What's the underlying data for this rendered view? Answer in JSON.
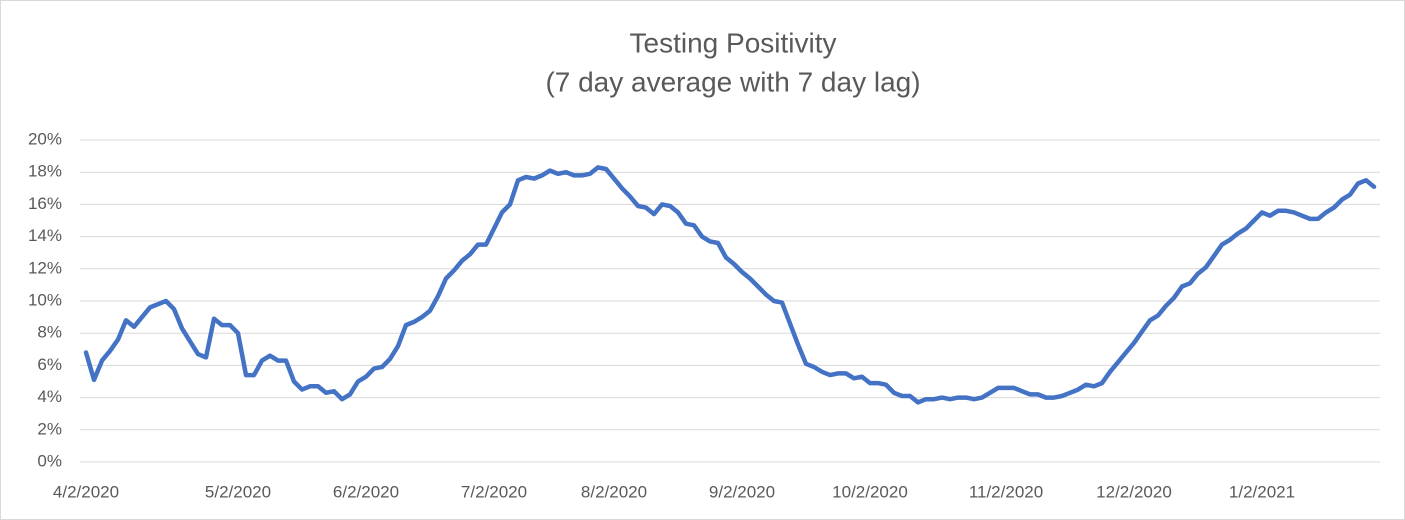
{
  "chart_data": {
    "type": "line",
    "title": "Testing Positivity",
    "subtitle": "(7 day average with 7 day lag)",
    "categories": [
      "4/2/2020",
      null,
      null,
      null,
      null,
      null,
      null,
      null,
      null,
      null,
      null,
      null,
      null,
      null,
      null,
      null,
      null,
      null,
      null,
      "5/2/2020",
      null,
      null,
      null,
      null,
      null,
      null,
      null,
      null,
      null,
      null,
      null,
      null,
      null,
      null,
      null,
      "6/2/2020",
      null,
      null,
      null,
      null,
      null,
      null,
      null,
      null,
      null,
      null,
      null,
      null,
      null,
      null,
      null,
      "7/2/2020",
      null,
      null,
      null,
      null,
      null,
      null,
      null,
      null,
      null,
      null,
      null,
      null,
      null,
      null,
      "8/2/2020",
      null,
      null,
      null,
      null,
      null,
      null,
      null,
      null,
      null,
      null,
      null,
      null,
      null,
      null,
      null,
      "9/2/2020",
      null,
      null,
      null,
      null,
      null,
      null,
      null,
      null,
      null,
      null,
      null,
      null,
      null,
      null,
      null,
      "10/2/2020",
      null,
      null,
      null,
      null,
      null,
      null,
      null,
      null,
      null,
      null,
      null,
      null,
      null,
      null,
      null,
      null,
      "11/2/2020",
      null,
      null,
      null,
      null,
      null,
      null,
      null,
      null,
      null,
      null,
      null,
      null,
      null,
      null,
      null,
      "12/2/2020",
      null,
      null,
      null,
      null,
      null,
      null,
      null,
      null,
      null,
      null,
      null,
      null,
      null,
      null,
      null,
      "1/2/2021",
      null,
      null,
      null,
      null,
      null,
      null,
      null,
      null,
      null,
      null,
      null,
      null,
      null,
      null
    ],
    "values": [
      6.8,
      5.1,
      6.3,
      6.9,
      7.6,
      8.8,
      8.4,
      9.0,
      9.6,
      9.8,
      10.0,
      9.5,
      8.3,
      7.5,
      6.7,
      6.5,
      8.9,
      8.5,
      8.5,
      8.0,
      5.4,
      5.4,
      6.3,
      6.6,
      6.3,
      6.3,
      5.0,
      4.5,
      4.7,
      4.7,
      4.3,
      4.4,
      3.9,
      4.2,
      5.0,
      5.3,
      5.8,
      5.9,
      6.4,
      7.2,
      8.5,
      8.7,
      9.0,
      9.4,
      10.3,
      11.4,
      11.9,
      12.5,
      12.9,
      13.5,
      13.5,
      14.5,
      15.5,
      16.0,
      17.5,
      17.7,
      17.6,
      17.8,
      18.1,
      17.9,
      18.0,
      17.8,
      17.8,
      17.9,
      18.3,
      18.2,
      17.6,
      17.0,
      16.5,
      15.9,
      15.8,
      15.4,
      16.0,
      15.9,
      15.5,
      14.8,
      14.7,
      14.0,
      13.7,
      13.6,
      12.7,
      12.3,
      11.8,
      11.4,
      10.9,
      10.4,
      10.0,
      9.9,
      8.6,
      7.3,
      6.1,
      5.9,
      5.6,
      5.4,
      5.5,
      5.5,
      5.2,
      5.3,
      4.9,
      4.9,
      4.8,
      4.3,
      4.1,
      4.1,
      3.7,
      3.9,
      3.9,
      4.0,
      3.9,
      4.0,
      4.0,
      3.9,
      4.0,
      4.3,
      4.6,
      4.6,
      4.6,
      4.4,
      4.2,
      4.2,
      4.0,
      4.0,
      4.1,
      4.3,
      4.5,
      4.8,
      4.7,
      4.9,
      5.6,
      6.2,
      6.8,
      7.4,
      8.1,
      8.8,
      9.1,
      9.7,
      10.2,
      10.9,
      11.1,
      11.7,
      12.1,
      12.8,
      13.5,
      13.8,
      14.2,
      14.5,
      15.0,
      15.5,
      15.3,
      15.6,
      15.6,
      15.5,
      15.3,
      15.1,
      15.1,
      15.5,
      15.8,
      16.3,
      16.6,
      17.3,
      17.5,
      17.1
    ],
    "color": "#4472c4",
    "ylim": [
      0,
      20
    ],
    "yticks": [
      {
        "value": 0,
        "label": "0%"
      },
      {
        "value": 2,
        "label": "2%"
      },
      {
        "value": 4,
        "label": "4%"
      },
      {
        "value": 6,
        "label": "6%"
      },
      {
        "value": 8,
        "label": "8%"
      },
      {
        "value": 10,
        "label": "10%"
      },
      {
        "value": 12,
        "label": "12%"
      },
      {
        "value": 14,
        "label": "14%"
      },
      {
        "value": 16,
        "label": "16%"
      },
      {
        "value": 18,
        "label": "18%"
      },
      {
        "value": 20,
        "label": "20%"
      }
    ],
    "grid": true
  }
}
